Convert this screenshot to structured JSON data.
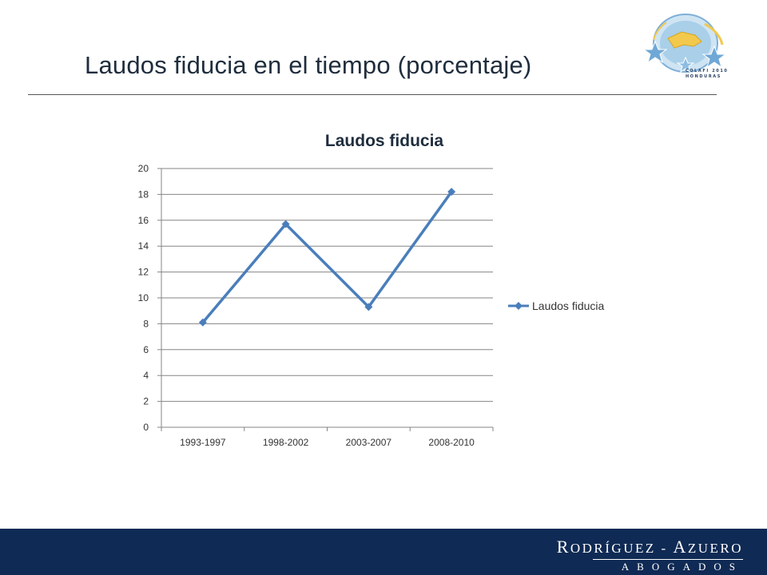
{
  "slide": {
    "title": "Laudos fiducia en el tiempo (porcentaje)"
  },
  "logo": {
    "line1": "COLAFI 2010",
    "line2": "HONDURAS"
  },
  "footer": {
    "firm_first_cap": "R",
    "firm_first_rest": "odríguez",
    "firm_sep": " - ",
    "firm_second_cap": "A",
    "firm_second_rest": "zuero",
    "subtitle": "ABOGADOS"
  },
  "colors": {
    "series": "#4a7ebb",
    "footer": "#0f2a54",
    "grid": "#868686"
  },
  "chart_data": {
    "type": "line",
    "title": "Laudos fiducia",
    "categories": [
      "1993-1997",
      "1998-2002",
      "2003-2007",
      "2008-2010"
    ],
    "series": [
      {
        "name": "Laudos fiducia",
        "values": [
          8.1,
          15.7,
          9.3,
          18.2
        ]
      }
    ],
    "ylim": [
      0,
      20
    ],
    "yticks": [
      0,
      2,
      4,
      6,
      8,
      10,
      12,
      14,
      16,
      18,
      20
    ],
    "xlabel": "",
    "ylabel": "",
    "grid": true,
    "legend": "right",
    "marker": "diamond"
  }
}
